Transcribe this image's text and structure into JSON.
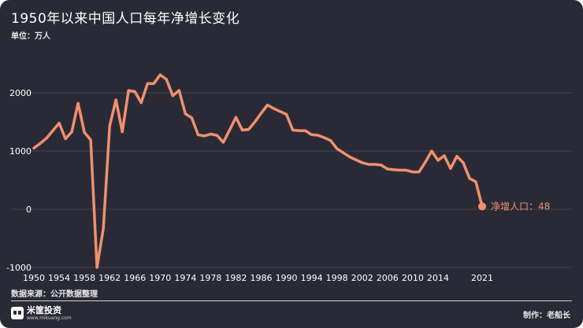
{
  "header": {
    "title": "1950年以来中国人口每年净增长变化",
    "unit": "单位：万人"
  },
  "footer": {
    "source": "数据来源：公开数据整理",
    "brand_name": "米筐投资",
    "brand_url": "www.mikuang.com",
    "author": "制作：老船长"
  },
  "colors": {
    "background": "#2a2a36",
    "line": "#f0906e",
    "gridline": "#44444f"
  },
  "chart_data": {
    "type": "line",
    "title": "1950年以来中国人口每年净增长变化",
    "ylabel": "单位：万人",
    "xlim": [
      1950,
      2021
    ],
    "ylim": [
      -1000,
      2000
    ],
    "y_ticks": [
      -1000,
      0,
      1000,
      2000
    ],
    "x_ticks": [
      1950,
      1954,
      1958,
      1962,
      1966,
      1970,
      1974,
      1978,
      1982,
      1986,
      1990,
      1994,
      1998,
      2002,
      2006,
      2010,
      2014,
      2021
    ],
    "annotation": {
      "label": "净增人口：48",
      "x": 2021,
      "y": 48
    },
    "series": [
      {
        "x": [
          1950,
          1951,
          1952,
          1953,
          1954,
          1955,
          1956,
          1957,
          1958,
          1959,
          1960,
          1961,
          1962,
          1963,
          1964,
          1965,
          1966,
          1967,
          1968,
          1969,
          1970,
          1971,
          1972,
          1973,
          1974,
          1975,
          1976,
          1977,
          1978,
          1979,
          1980,
          1981,
          1982,
          1983,
          1984,
          1985,
          1986,
          1987,
          1988,
          1989,
          1990,
          1991,
          1992,
          1993,
          1994,
          1995,
          1996,
          1997,
          1998,
          1999,
          2000,
          2001,
          2002,
          2003,
          2004,
          2005,
          2006,
          2007,
          2008,
          2009,
          2010,
          2011,
          2012,
          2013,
          2014,
          2015,
          2016,
          2017,
          2018,
          2019,
          2020,
          2021
        ],
        "y": [
          1050,
          1130,
          1220,
          1350,
          1480,
          1210,
          1330,
          1820,
          1320,
          1190,
          -1000,
          -330,
          1430,
          1880,
          1330,
          2040,
          2020,
          1830,
          2160,
          2160,
          2310,
          2230,
          1950,
          2040,
          1640,
          1570,
          1280,
          1260,
          1290,
          1270,
          1150,
          1360,
          1580,
          1360,
          1370,
          1500,
          1650,
          1790,
          1730,
          1680,
          1630,
          1360,
          1350,
          1350,
          1280,
          1270,
          1230,
          1180,
          1040,
          970,
          900,
          850,
          800,
          770,
          770,
          760,
          690,
          680,
          670,
          670,
          640,
          640,
          810,
          1000,
          840,
          920,
          700,
          910,
          800,
          530,
          470,
          48
        ]
      }
    ]
  }
}
